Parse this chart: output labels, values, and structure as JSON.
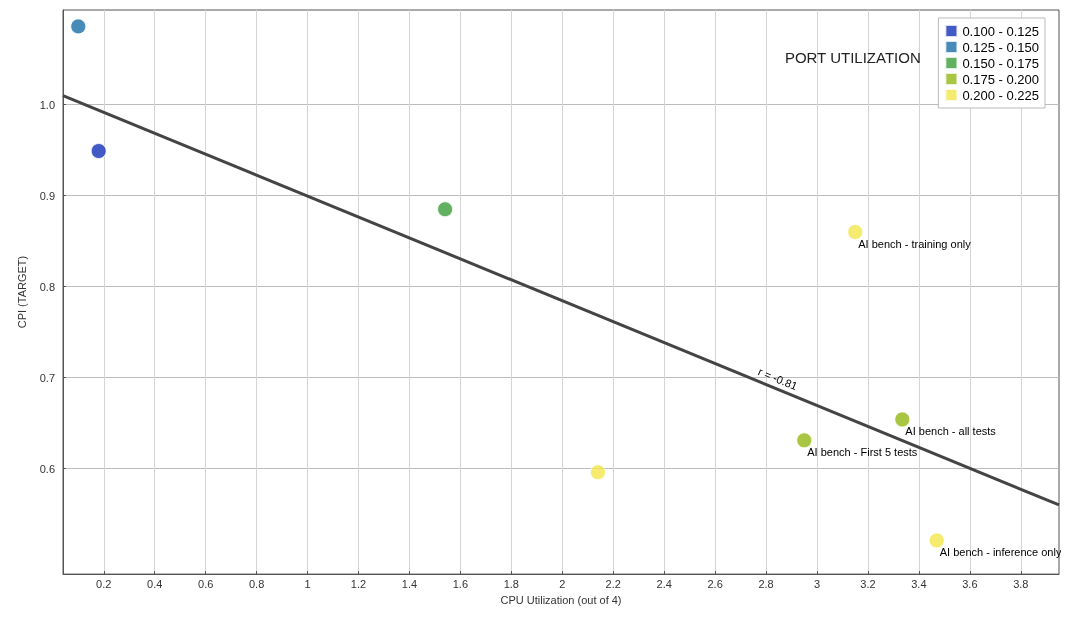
{
  "chart_data": {
    "type": "scatter",
    "xlabel": "CPU Utilization (out of 4)",
    "ylabel": "CPI (TARGET)",
    "legend_title": "PORT UTILIZATION",
    "legend": "top right",
    "grid": true,
    "marker": "circle",
    "xlim": [
      0.04,
      3.95
    ],
    "xticks": [
      0.2,
      0.4,
      0.6,
      0.8,
      1,
      1.2,
      1.4,
      1.6,
      1.8,
      2,
      2.2,
      2.4,
      2.6,
      2.8,
      3,
      3.2,
      3.4,
      3.6,
      3.8
    ],
    "ylim": [
      0.484,
      1.104
    ],
    "yticks": [
      0.6,
      0.7,
      0.8,
      0.9,
      {
        "value": 1,
        "label": "1.0"
      }
    ],
    "series": [
      {
        "name": "0.100 - 0.125",
        "color": "#1431b8",
        "x": [
          0.18
        ],
        "values": [
          0.949
        ]
      },
      {
        "name": "0.125 - 0.150",
        "color": "#1a6ea8",
        "x": [
          0.1
        ],
        "values": [
          1.086
        ]
      },
      {
        "name": "0.150 - 0.175",
        "color": "#3a9e3a",
        "x": [
          1.54
        ],
        "values": [
          0.885
        ]
      },
      {
        "name": "0.175 - 0.200",
        "color": "#94b814",
        "x": [
          3.335,
          2.95
        ],
        "values": [
          0.654,
          0.631
        ]
      },
      {
        "name": "0.200 - 0.225",
        "color": "#f2e64a",
        "x": [
          3.15,
          2.14,
          3.47
        ],
        "values": [
          0.86,
          0.596,
          0.521
        ]
      },
      {
        "type": "line",
        "marker": "none",
        "color": "#444444",
        "x": [
          0.04,
          3.95
        ],
        "values": [
          1.01,
          0.56
        ]
      }
    ],
    "annotations": [
      {
        "text": "AI bench - training only",
        "x": 3.15,
        "y": 0.86
      },
      {
        "text": "AI bench - all tests",
        "x": 3.335,
        "y": 0.654
      },
      {
        "text": "AI bench - First 5 tests",
        "x": 2.95,
        "y": 0.631
      },
      {
        "text": "AI bench - inference only",
        "x": 3.47,
        "y": 0.521
      },
      {
        "text": "r = -0.81",
        "x": 2.85,
        "y": 0.685
      }
    ]
  }
}
